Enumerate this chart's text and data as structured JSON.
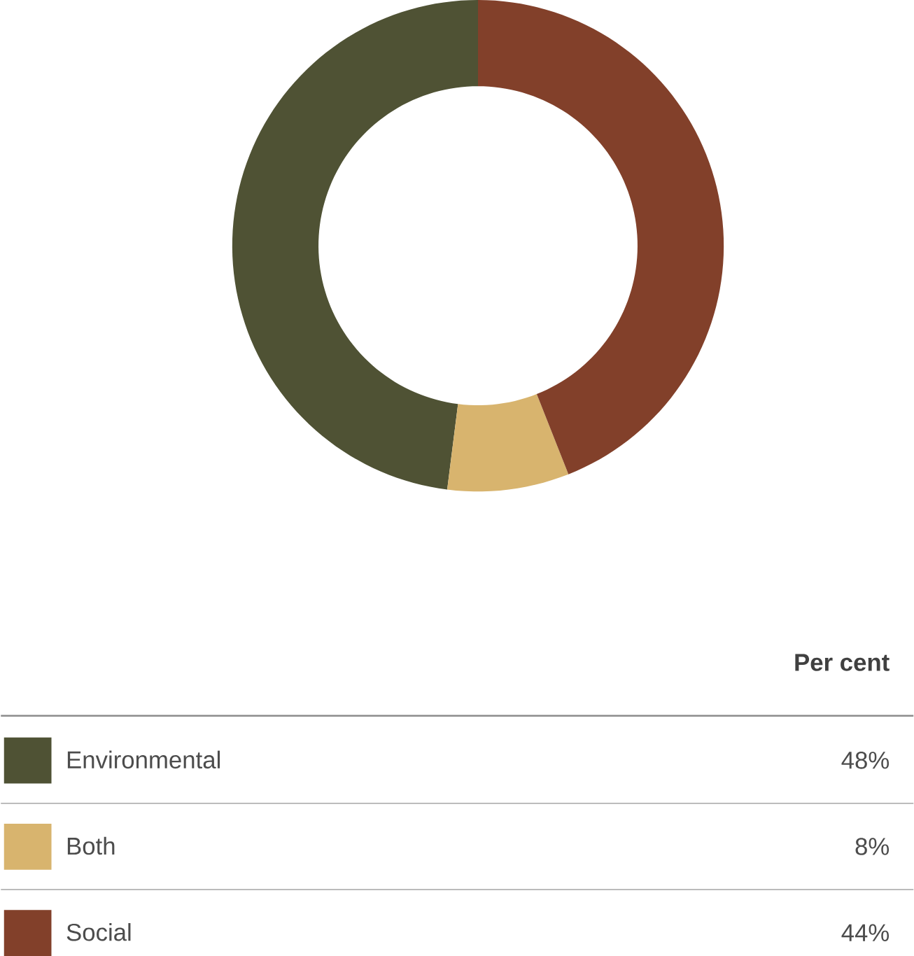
{
  "chart_data": {
    "type": "donut",
    "legend_title": "Per cent",
    "categories": [
      "Environmental",
      "Both",
      "Social"
    ],
    "values": [
      48,
      8,
      44
    ],
    "colors": [
      "#4f5234",
      "#d8b46e",
      "#82402a"
    ],
    "value_labels": [
      "48%",
      "8%",
      "44%"
    ],
    "legend": "bottom"
  }
}
